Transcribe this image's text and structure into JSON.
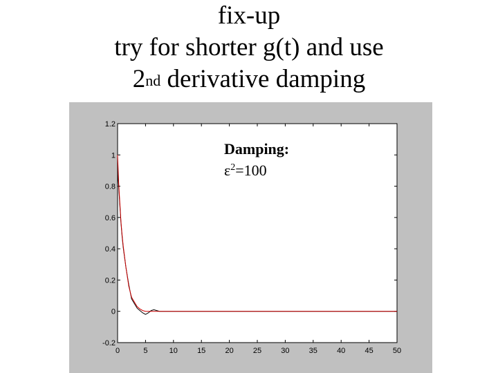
{
  "slide": {
    "title_line1": "fix-up",
    "title_line2": "try for shorter g(t) and use",
    "title_line3_pre": "2",
    "title_line3_sup": "nd",
    "title_line3_post": " derivative damping"
  },
  "chart_data": {
    "type": "line",
    "title": "",
    "xlabel": "",
    "ylabel": "",
    "xlim": [
      0,
      50
    ],
    "ylim": [
      -0.2,
      1.2
    ],
    "xticks": [
      0,
      5,
      10,
      15,
      20,
      25,
      30,
      35,
      40,
      45,
      50
    ],
    "yticks": [
      -0.2,
      0,
      0.2,
      0.4,
      0.6,
      0.8,
      1,
      1.2
    ],
    "xtick_labels": [
      "0",
      "5",
      "10",
      "15",
      "20",
      "25",
      "30",
      "35",
      "40",
      "45",
      "50"
    ],
    "ytick_labels": [
      "-0.2",
      "0",
      "0.2",
      "0.4",
      "0.6",
      "0.8",
      "1",
      "1.2"
    ],
    "grid": false,
    "annotation": {
      "line1": "Damping:",
      "line2_symbol": "ε",
      "line2_sup": "2",
      "line2_rest": "=100"
    },
    "series": [
      {
        "color": "#000000",
        "x": [
          0,
          0.2,
          0.4,
          0.6,
          0.8,
          1.0,
          1.5,
          2,
          2.5,
          3,
          3.5,
          4,
          4.5,
          5,
          5.5,
          6,
          6.5,
          7,
          7.5,
          8,
          9,
          10,
          15,
          20,
          30,
          40,
          50
        ],
        "y": [
          0.9,
          0.8,
          0.68,
          0.57,
          0.48,
          0.41,
          0.28,
          0.17,
          0.08,
          0.05,
          0.02,
          0.005,
          -0.01,
          -0.02,
          -0.01,
          0.005,
          0.01,
          0.005,
          0.0,
          0.0,
          0.0,
          0.0,
          0.0,
          0.0,
          0.0,
          0.0,
          0.0
        ]
      },
      {
        "color": "#cc0000",
        "x": [
          0,
          0.2,
          0.4,
          0.6,
          0.8,
          1.0,
          1.5,
          2,
          2.5,
          3,
          3.5,
          4,
          4.5,
          5,
          5.5,
          6,
          6.5,
          7,
          7.5,
          8,
          9,
          10,
          15,
          20,
          30,
          40,
          50
        ],
        "y": [
          1.0,
          0.82,
          0.7,
          0.58,
          0.49,
          0.42,
          0.28,
          0.16,
          0.09,
          0.06,
          0.03,
          0.015,
          0.005,
          0.0,
          0.0,
          0.0,
          0.0,
          0.0,
          0.0,
          0.0,
          0.0,
          0.0,
          0.0,
          0.0,
          0.0,
          0.0,
          0.0
        ]
      }
    ]
  }
}
